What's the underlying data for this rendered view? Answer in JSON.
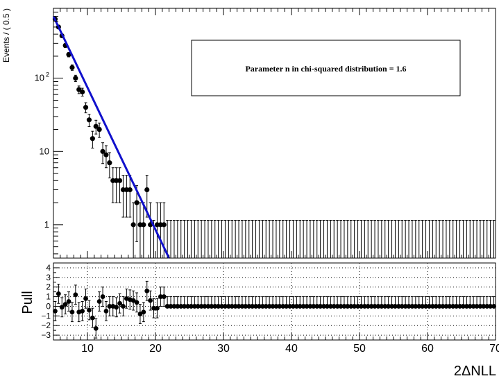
{
  "chart_data": [
    {
      "panel": "main",
      "type": "scatter",
      "ylabel": "Events / ( 0.5 )",
      "y_scale": "log",
      "xlim": [
        5,
        70
      ],
      "ylim": [
        0.35,
        900
      ],
      "y_ticks": [
        {
          "value": 1,
          "label": "1"
        },
        {
          "value": 10,
          "label": "10"
        },
        {
          "value": 100,
          "label": "10",
          "sup": "2"
        }
      ],
      "annotation": "Parameter n in chi-squared distribution = 1.6",
      "series": [
        {
          "kind": "points-with-errors",
          "color": "#000000",
          "x": [
            5.25,
            5.75,
            6.25,
            6.75,
            7.25,
            7.75,
            8.25,
            8.75,
            9.25,
            9.75,
            10.25,
            10.75,
            11.25,
            11.75,
            12.25,
            12.75,
            13.25,
            13.75,
            14.25,
            14.75,
            15.25,
            15.75,
            16.25,
            16.75,
            17.25,
            17.75,
            18.25,
            18.75,
            19.25,
            19.75,
            20.25,
            20.75,
            21.25
          ],
          "y": [
            640,
            500,
            380,
            280,
            210,
            140,
            100,
            70,
            65,
            40,
            27,
            15,
            22,
            20,
            10,
            9,
            7,
            4,
            4,
            4,
            3,
            3,
            3,
            1,
            2,
            1,
            1,
            3,
            1,
            0,
            1,
            1,
            1
          ]
        },
        {
          "kind": "fit-curve",
          "color": "#1010cc",
          "x": [
            5.0,
            22.0
          ],
          "y": [
            700,
            0.35
          ]
        }
      ]
    },
    {
      "panel": "pull",
      "type": "scatter",
      "xlabel": "2ΔNLL",
      "ylabel": "Pull",
      "xlim": [
        5,
        70
      ],
      "ylim": [
        -3.5,
        4.5
      ],
      "x_ticks": [
        10,
        20,
        30,
        40,
        50,
        60,
        70
      ],
      "y_ticks": [
        -3,
        -2,
        -1,
        0,
        1,
        2,
        3,
        4
      ],
      "grid": true,
      "zero_bin_pull": 1,
      "series": [
        {
          "kind": "points-with-errors",
          "color": "#000000",
          "x": [
            5.25,
            5.75,
            6.25,
            6.75,
            7.25,
            7.75,
            8.25,
            8.75,
            9.25,
            9.75,
            10.25,
            10.75,
            11.25,
            11.75,
            12.25,
            12.75,
            13.25,
            13.75,
            14.25,
            14.75,
            15.25,
            15.75,
            16.25,
            16.75,
            17.25,
            17.75,
            18.25,
            18.75,
            19.25,
            19.75,
            20.25,
            20.75,
            21.25
          ],
          "y": [
            -0.5,
            1.3,
            -0.1,
            0.2,
            0.5,
            -0.6,
            1.2,
            -0.6,
            -0.5,
            0.8,
            -0.4,
            -1.2,
            -2.3,
            0.5,
            1.0,
            -0.5,
            0.0,
            0.0,
            -0.1,
            0.3,
            0.0,
            0.8,
            0.7,
            0.6,
            0.4,
            -0.8,
            -0.6,
            1.6,
            0.6,
            -0.2,
            -0.2,
            1.0,
            1.0
          ]
        }
      ]
    }
  ]
}
